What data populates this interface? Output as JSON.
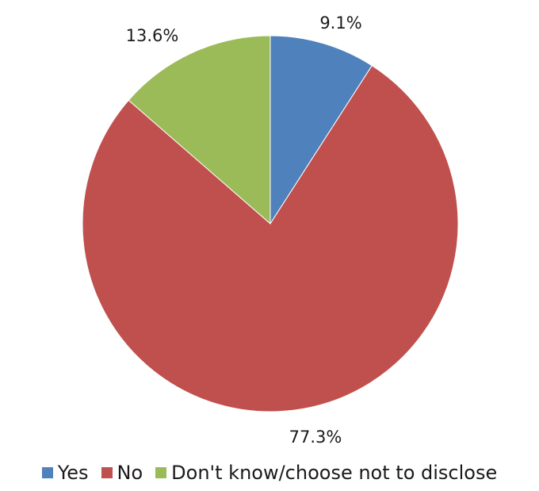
{
  "chart_data": {
    "type": "pie",
    "categories": [
      "Yes",
      "No",
      "Don't know/choose not to disclose"
    ],
    "values": [
      9.1,
      77.3,
      13.6
    ],
    "data_labels": [
      "9.1%",
      "77.3%",
      "13.6%"
    ],
    "colors": [
      "#4F81BD",
      "#C0504D",
      "#9BBB59"
    ],
    "title": "",
    "legend": "bottom",
    "start": "12 o'clock, clockwise"
  }
}
